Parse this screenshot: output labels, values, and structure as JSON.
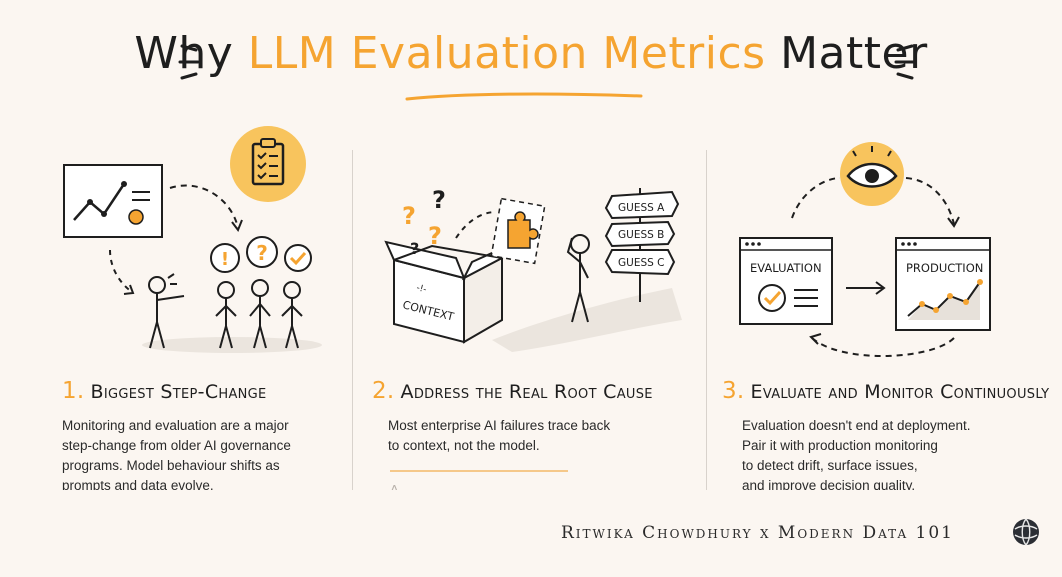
{
  "title": {
    "lead": "Why",
    "accent": "LLM Evaluation Metrics",
    "tail": "Matter"
  },
  "colors": {
    "accent": "#f5a431",
    "background": "#fbf6f1",
    "ink": "#1e1e1e"
  },
  "panels": [
    {
      "number": "1.",
      "heading": "Biggest Step-Change",
      "body": [
        "Monitoring and evaluation are a major",
        "step-change from older AI governance",
        "programs. Model behaviour shifts as",
        "prompts and data evolve."
      ],
      "icon": "clipboard-checklist-icon"
    },
    {
      "number": "2.",
      "heading": "Address the Real Root Cause",
      "body": [
        "Most enterprise AI failures trace back",
        "to context, not the model."
      ],
      "faded_text": "A…          …",
      "box_label": "CONTEXT",
      "box_mark": "-!-",
      "signs": [
        "GUESS A",
        "GUESS B",
        "GUESS C"
      ],
      "icon": "puzzle-piece-icon"
    },
    {
      "number": "3.",
      "heading": "Evaluate and Monitor Continuously",
      "body": [
        "Evaluation doesn't end at deployment.",
        "Pair it with production monitoring",
        "to detect drift, surface issues,",
        "and improve decision quality."
      ],
      "windows": [
        "EVALUATION",
        "PRODUCTION"
      ],
      "icon": "eye-icon"
    }
  ],
  "footer": {
    "credit": "Ritwika Chowdhury x Modern Data 101"
  }
}
